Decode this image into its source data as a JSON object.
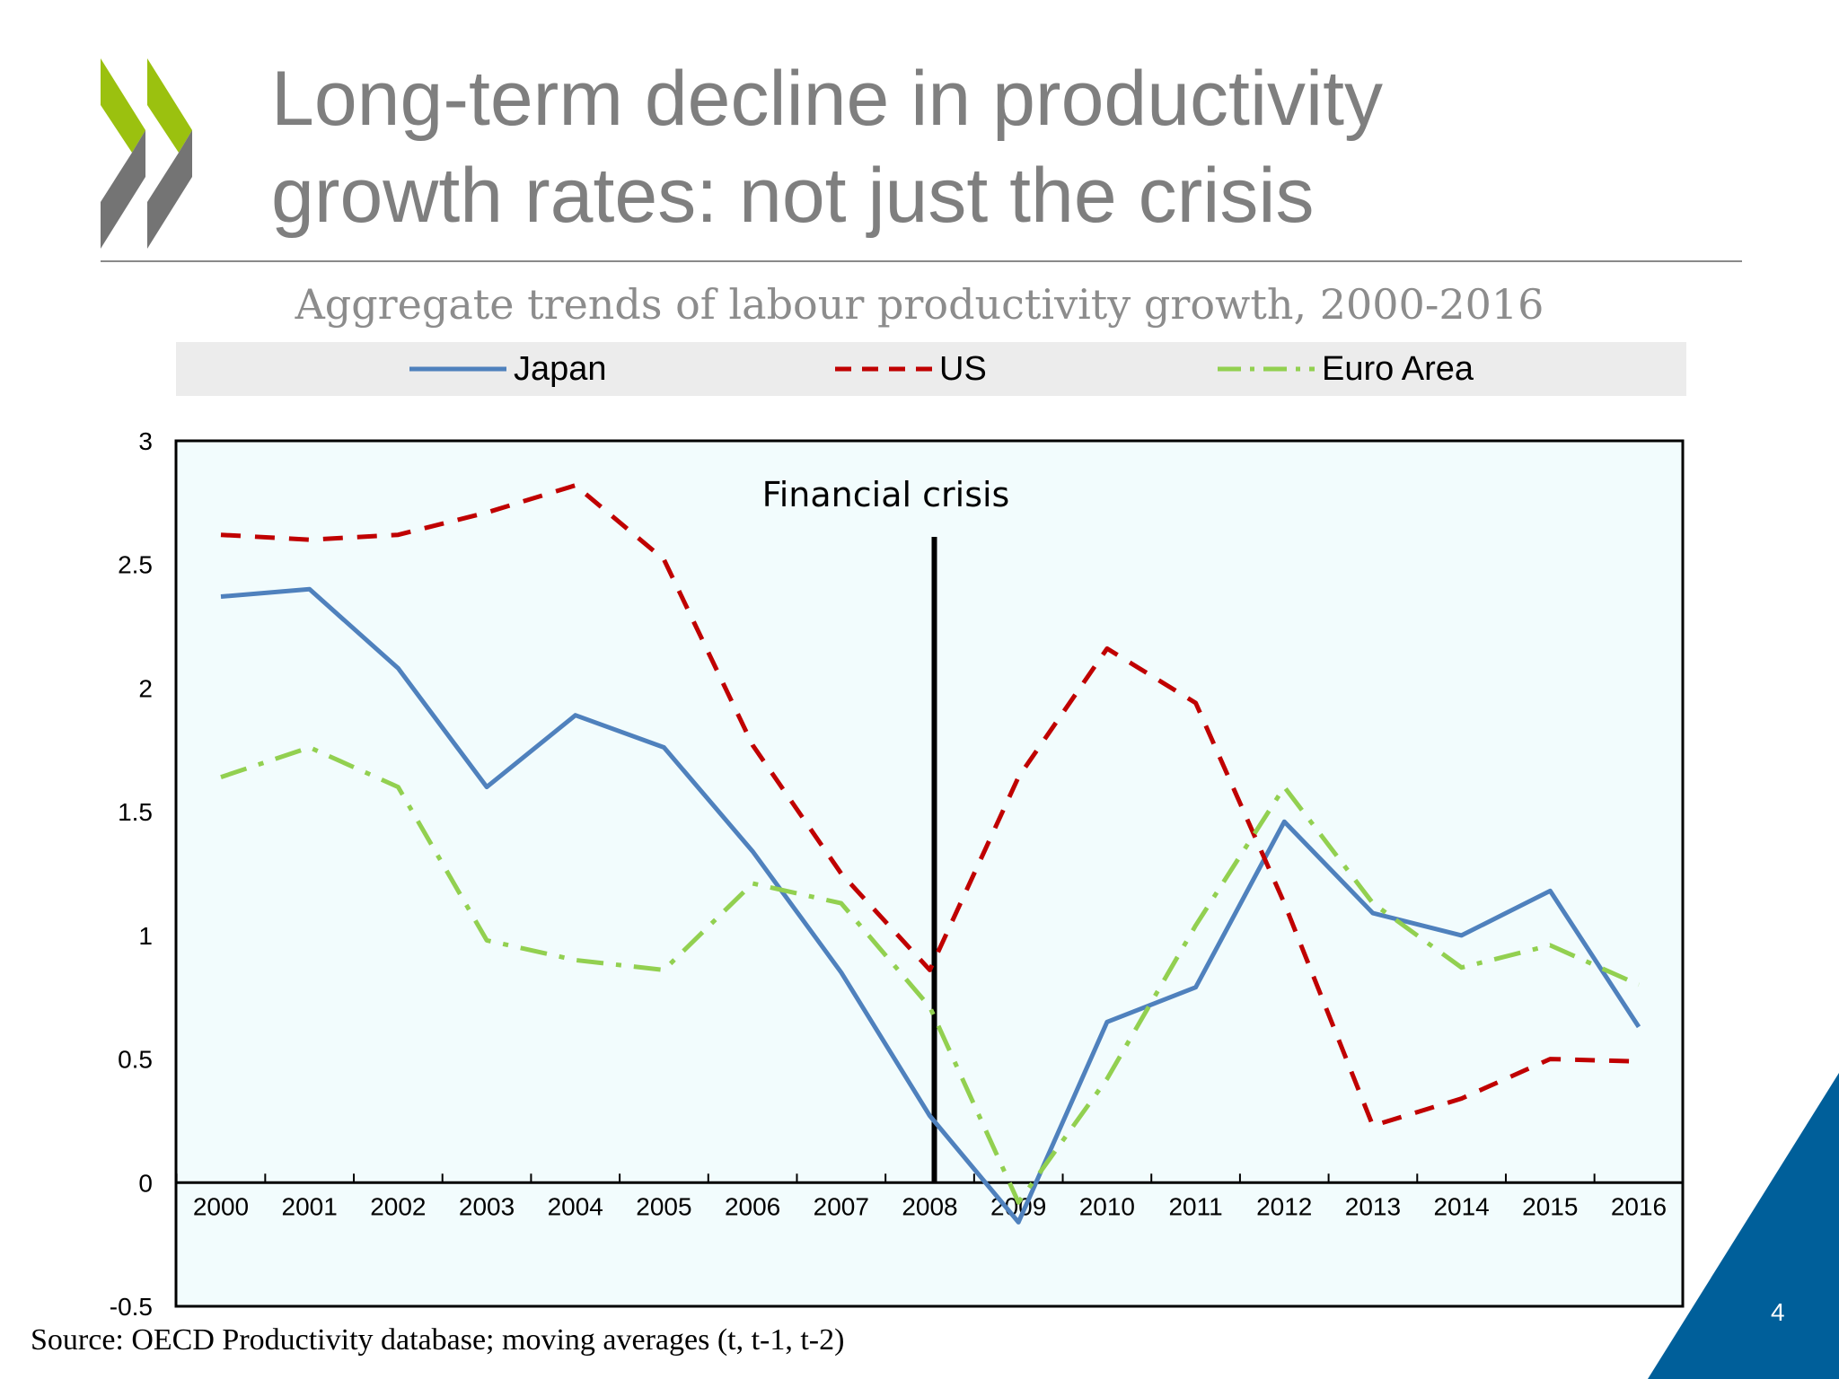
{
  "slide": {
    "title_line1": "Long-term decline in productivity",
    "title_line2": "growth rates: not just the crisis",
    "source": "Source: OECD Productivity database; moving averages (t, t-1, t-2)",
    "page_number": "4",
    "logo": "OECD",
    "colors": {
      "logo_green": "#9bc10f",
      "logo_gray": "#747474",
      "corner_blue": "#005f9a",
      "plot_bg": "#f2fcfd"
    }
  },
  "chart_data": {
    "type": "line",
    "title": "Aggregate trends of labour productivity growth, 2000-2016",
    "xlabel": "",
    "ylabel": "",
    "x": [
      "2000",
      "2001",
      "2002",
      "2003",
      "2004",
      "2005",
      "2006",
      "2007",
      "2008",
      "2009",
      "2010",
      "2011",
      "2012",
      "2013",
      "2014",
      "2015",
      "2016"
    ],
    "ylim": [
      -0.5,
      3
    ],
    "yticks": [
      "3",
      "2.5",
      "2",
      "1.5",
      "1",
      "0.5",
      "0",
      "-0.5"
    ],
    "grid": false,
    "legend_placement": "top",
    "annotation": {
      "text": "Financial crisis",
      "x": "2008"
    },
    "series": [
      {
        "name": "Japan",
        "color": "#4f81bd",
        "style": "solid",
        "values": [
          2.37,
          2.4,
          2.08,
          1.6,
          1.89,
          1.76,
          1.34,
          0.85,
          0.27,
          -0.16,
          0.65,
          0.79,
          1.46,
          1.09,
          1.0,
          1.18,
          0.63
        ]
      },
      {
        "name": "US",
        "color": "#c00000",
        "style": "dashed",
        "values": [
          2.62,
          2.6,
          2.62,
          2.71,
          2.82,
          2.52,
          1.77,
          1.25,
          0.86,
          1.64,
          2.16,
          1.94,
          1.13,
          0.23,
          0.34,
          0.5,
          0.49
        ]
      },
      {
        "name": "Euro Area",
        "color": "#92d050",
        "style": "dash-dot",
        "values": [
          1.64,
          1.76,
          1.6,
          0.98,
          0.9,
          0.86,
          1.21,
          1.13,
          0.71,
          -0.08,
          0.42,
          1.04,
          1.6,
          1.13,
          0.87,
          0.96,
          0.8
        ]
      }
    ]
  }
}
